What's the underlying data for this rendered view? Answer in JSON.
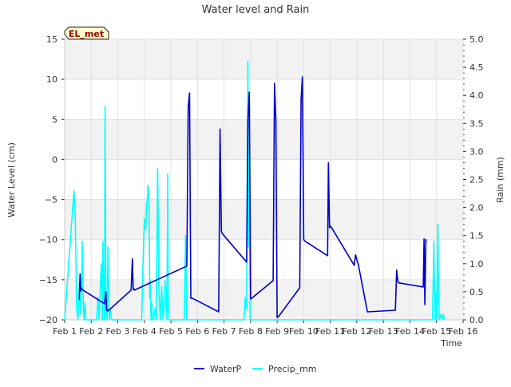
{
  "chart_data": {
    "type": "line",
    "title": "Water level and Rain",
    "xlabel": "Time",
    "ylabel": "Water Level (cm)",
    "y2label": "Rain (mm)",
    "site_label": "EL_met",
    "xlim": [
      1,
      16
    ],
    "ylim": [
      -20,
      15
    ],
    "y2lim": [
      0,
      5
    ],
    "x_ticks": [
      {
        "value": 1,
        "label": "Feb 1"
      },
      {
        "value": 2,
        "label": "Feb 2"
      },
      {
        "value": 3,
        "label": "Feb 3"
      },
      {
        "value": 4,
        "label": "Feb 4"
      },
      {
        "value": 5,
        "label": "Feb 5"
      },
      {
        "value": 6,
        "label": "Feb 6"
      },
      {
        "value": 7,
        "label": "Feb 7"
      },
      {
        "value": 8,
        "label": "Feb 8"
      },
      {
        "value": 9,
        "label": "Feb 9"
      },
      {
        "value": 10,
        "label": "Feb 10"
      },
      {
        "value": 11,
        "label": "Feb 11"
      },
      {
        "value": 12,
        "label": "Feb 12"
      },
      {
        "value": 13,
        "label": "Feb 13"
      },
      {
        "value": 14,
        "label": "Feb 14"
      },
      {
        "value": 15,
        "label": "Feb 15"
      },
      {
        "value": 16,
        "label": "Feb 16"
      }
    ],
    "y_ticks": [
      {
        "value": 15,
        "label": "15"
      },
      {
        "value": 10,
        "label": "10"
      },
      {
        "value": 5,
        "label": "5"
      },
      {
        "value": 0,
        "label": "0"
      },
      {
        "value": -5,
        "label": "−5"
      },
      {
        "value": -10,
        "label": "−10"
      },
      {
        "value": -15,
        "label": "−15"
      },
      {
        "value": -20,
        "label": "−20"
      }
    ],
    "y2_ticks": [
      {
        "value": 5.0,
        "label": "5.0"
      },
      {
        "value": 4.5,
        "label": "4.5"
      },
      {
        "value": 4.0,
        "label": "4.0"
      },
      {
        "value": 3.5,
        "label": "3.5"
      },
      {
        "value": 3.0,
        "label": "3.0"
      },
      {
        "value": 2.5,
        "label": "2.5"
      },
      {
        "value": 2.0,
        "label": "2.0"
      },
      {
        "value": 1.5,
        "label": "1.5"
      },
      {
        "value": 1.0,
        "label": "1.0"
      },
      {
        "value": 0.5,
        "label": "0.5"
      },
      {
        "value": 0.0,
        "label": "0.0"
      }
    ],
    "bands": [
      [
        10,
        15
      ],
      [
        0,
        5
      ],
      [
        -10,
        -5
      ],
      [
        -20,
        -15
      ]
    ],
    "legend": [
      {
        "name": "WaterP",
        "color": "#0000cc"
      },
      {
        "name": "Precip_mm",
        "color": "#00ffff"
      }
    ],
    "series": [
      {
        "name": "WaterP",
        "color": "#0000cc",
        "axis": "left",
        "x": [
          1.55,
          1.58,
          1.6,
          1.62,
          1.65,
          2.5,
          2.55,
          2.58,
          2.6,
          2.63,
          3.5,
          3.55,
          3.58,
          3.6,
          3.62,
          5.6,
          5.65,
          5.7,
          5.75,
          5.8,
          6.8,
          6.85,
          6.9,
          6.95,
          7.85,
          7.9,
          7.95,
          8.0,
          8.05,
          8.85,
          8.9,
          8.95,
          9.0,
          9.05,
          9.85,
          9.9,
          9.95,
          10.0,
          10.05,
          10.9,
          10.93,
          10.97,
          11.0,
          11.05,
          11.9,
          11.95,
          12.0,
          12.05,
          12.4,
          13.45,
          13.5,
          13.55,
          13.6,
          14.5,
          14.53,
          14.56,
          14.6,
          14.62
        ],
        "y": [
          -17.5,
          -14.3,
          -16.4,
          -16.0,
          -16.2,
          -18.0,
          -16.5,
          -18.8,
          -18.7,
          -18.9,
          -16.3,
          -12.4,
          -16.2,
          -16.1,
          -16.3,
          -13.3,
          6.5,
          8.3,
          -17.3,
          -17.3,
          -19.0,
          3.8,
          -9.0,
          -9.3,
          -12.8,
          5.0,
          8.4,
          -17.4,
          -17.3,
          -15.1,
          9.5,
          5.0,
          -19.7,
          -19.6,
          -16.0,
          7.5,
          10.3,
          -10.0,
          -10.2,
          -12.0,
          -0.4,
          -8.5,
          -8.3,
          -8.5,
          -13.2,
          -11.9,
          -12.5,
          -13.0,
          -19.0,
          -18.8,
          -13.8,
          -15.3,
          -15.4,
          -15.9,
          -9.9,
          -18.1,
          -10.0,
          -10.2
        ]
      },
      {
        "name": "Precip_mm",
        "color": "#00ffff",
        "axis": "right",
        "x": [
          1.0,
          1.35,
          1.4,
          1.45,
          1.5,
          1.55,
          1.6,
          1.63,
          1.66,
          1.7,
          1.73,
          1.76,
          1.8,
          2.2,
          2.25,
          2.3,
          2.35,
          2.38,
          2.4,
          2.42,
          2.44,
          2.46,
          2.5,
          2.52,
          2.55,
          2.6,
          2.63,
          2.66,
          2.68,
          2.72,
          2.75,
          2.78,
          2.8,
          3.0,
          3.9,
          3.95,
          4.0,
          4.05,
          4.08,
          4.1,
          4.13,
          4.15,
          4.18,
          4.2,
          4.22,
          4.25,
          4.28,
          4.3,
          4.35,
          4.4,
          4.45,
          4.5,
          4.55,
          4.6,
          4.65,
          4.7,
          4.75,
          4.78,
          4.82,
          4.85,
          4.88,
          4.9,
          4.93,
          4.95,
          4.98,
          5.0,
          5.05,
          5.1,
          5.15,
          5.2,
          5.3,
          5.5,
          5.55,
          5.6,
          5.65,
          7.75,
          7.8,
          7.85,
          7.9,
          7.92,
          7.95,
          7.98,
          8.0,
          8.05,
          10.0,
          14.85,
          14.9,
          14.92,
          14.95,
          14.98,
          15.0,
          15.02,
          15.05,
          15.08,
          15.1,
          15.15,
          15.2,
          15.25,
          15.3
        ],
        "y": [
          0.0,
          2.3,
          1.8,
          0.2,
          0.0,
          0.6,
          0.1,
          0.5,
          1.4,
          0.3,
          0.0,
          0.3,
          0.0,
          0.0,
          0.4,
          0.0,
          0.7,
          1.0,
          0.5,
          0.0,
          1.4,
          0.6,
          0.0,
          3.8,
          0.2,
          0.0,
          1.3,
          0.4,
          0.0,
          0.2,
          0.05,
          0.0,
          0.0,
          0.0,
          0.0,
          1.0,
          1.8,
          1.6,
          2.1,
          2.0,
          2.4,
          2.3,
          2.0,
          0.4,
          0.7,
          0.0,
          0.3,
          0.0,
          0.0,
          0.2,
          0.0,
          2.7,
          0.5,
          0.0,
          0.6,
          0.0,
          0.3,
          0.7,
          0.5,
          0.0,
          2.6,
          0.4,
          0.0,
          0.0,
          0.0,
          0.0,
          0.0,
          0.0,
          0.0,
          0.0,
          0.0,
          0.0,
          1.5,
          0.0,
          0.0,
          0.0,
          0.4,
          0.2,
          4.6,
          1.3,
          3.0,
          0.0,
          0.0,
          0.0,
          0.0,
          0.0,
          1.4,
          0.6,
          0.0,
          0.5,
          0.0,
          0.5,
          1.7,
          0.4,
          0.0,
          0.1,
          0.0,
          0.1,
          0.0
        ]
      }
    ]
  }
}
